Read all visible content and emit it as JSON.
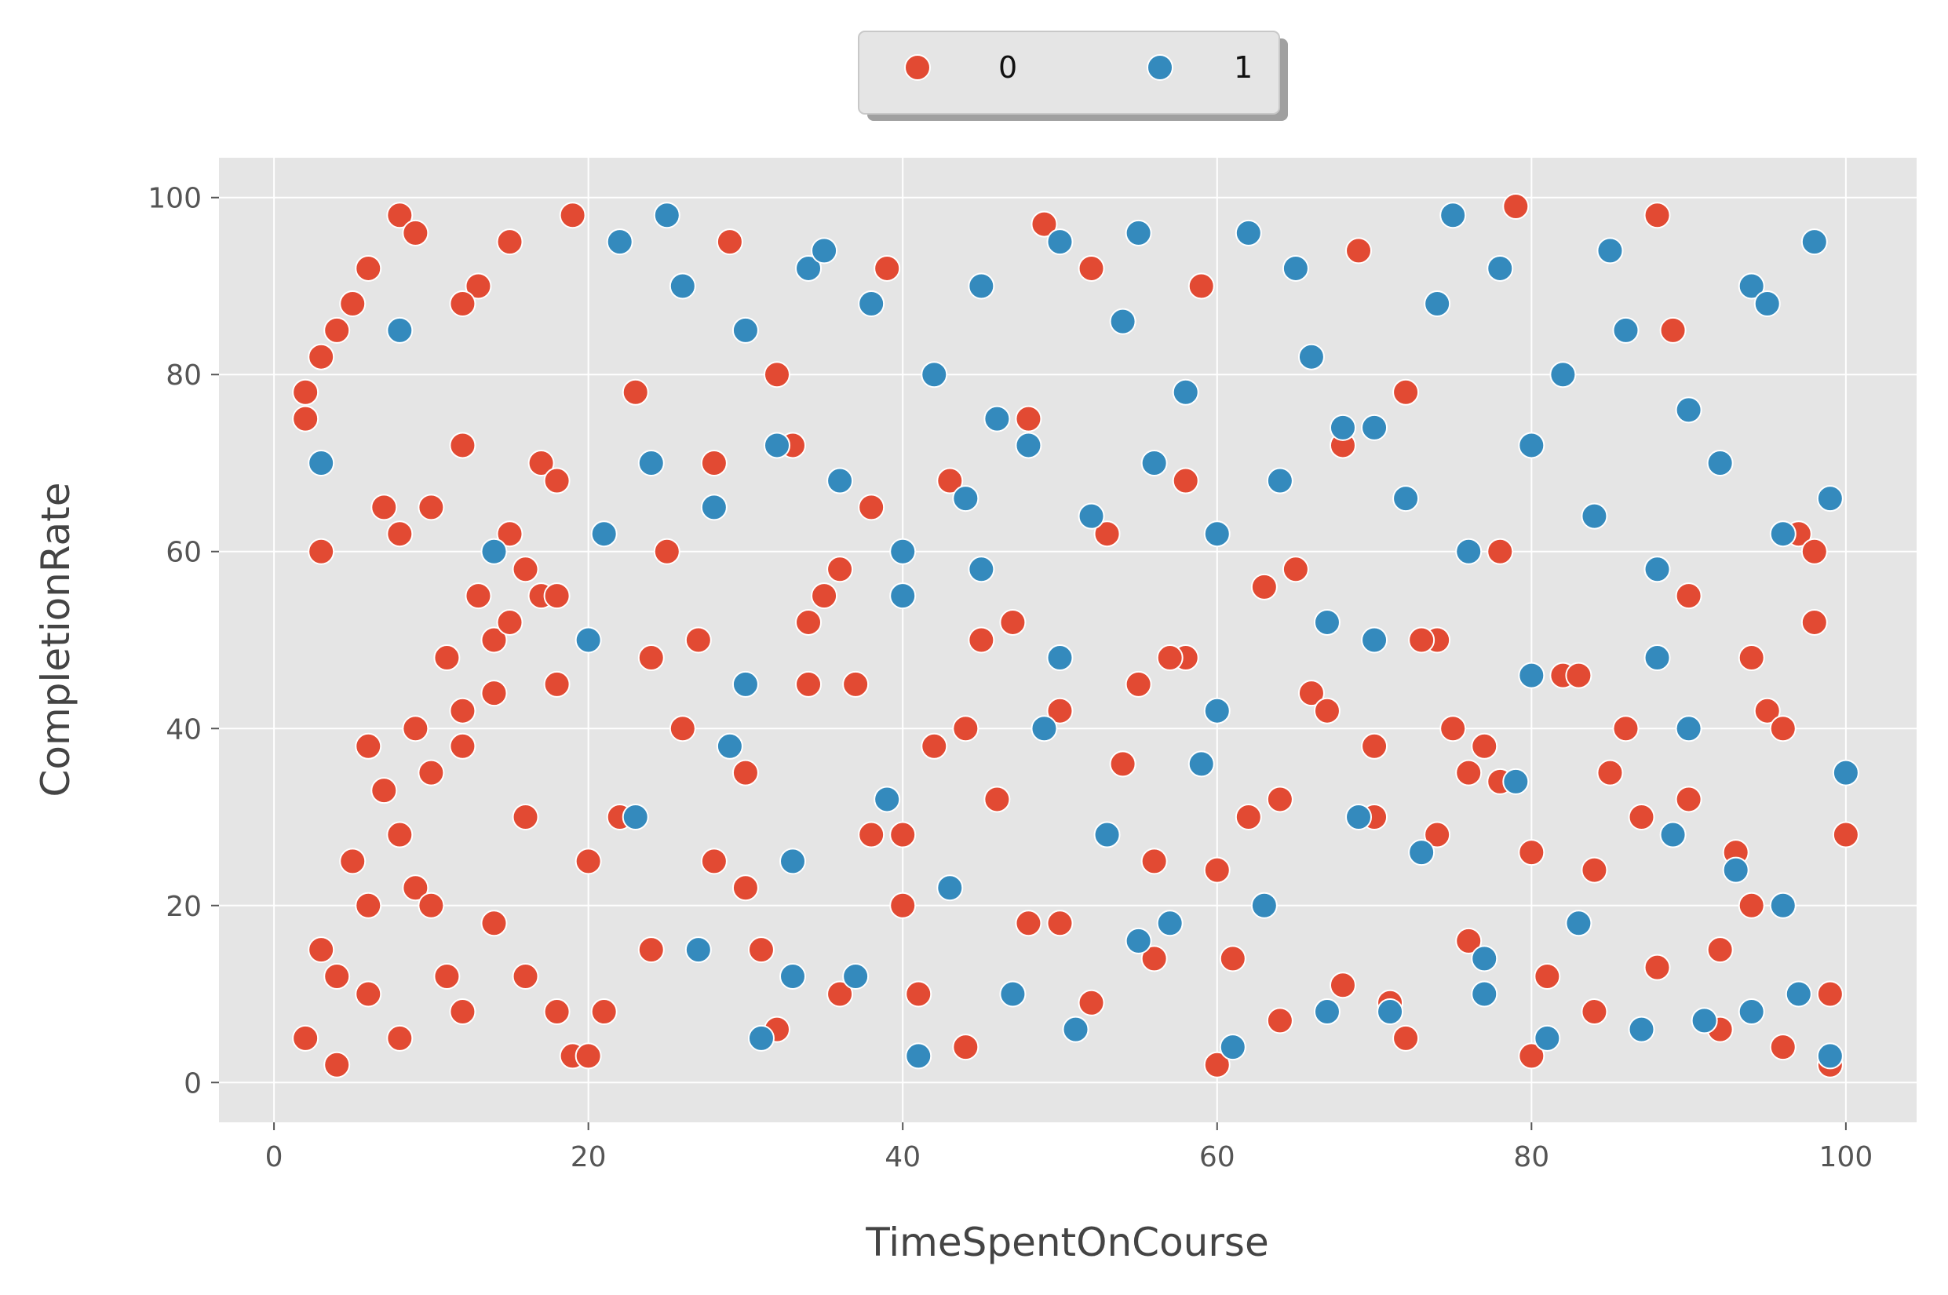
{
  "chart_data": {
    "type": "scatter",
    "title": "",
    "xlabel": "TimeSpentOnCourse",
    "ylabel": "CompletionRate",
    "xlim": [
      -3.5,
      104.5
    ],
    "ylim": [
      -4.5,
      104.5
    ],
    "x_ticks": [
      0,
      20,
      40,
      60,
      80,
      100
    ],
    "y_ticks": [
      0,
      20,
      40,
      60,
      80,
      100
    ],
    "grid": true,
    "legend": {
      "placement": "top-center",
      "columns": 2
    },
    "colors": {
      "0": "#e24a33",
      "1": "#348abd"
    },
    "series": [
      {
        "name": "0",
        "color": "#e24a33",
        "x": [
          2,
          4,
          6,
          8,
          10,
          12,
          14,
          16,
          18,
          3,
          5,
          7,
          9,
          11,
          13,
          15,
          17,
          19,
          2,
          4,
          6,
          8,
          10,
          12,
          14,
          16,
          18,
          3,
          6,
          9,
          12,
          15,
          18,
          4,
          8,
          12,
          16,
          20,
          24,
          28,
          32,
          36,
          40,
          44,
          48,
          52,
          56,
          60,
          64,
          68,
          72,
          76,
          80,
          84,
          88,
          92,
          96,
          99,
          22,
          26,
          30,
          34,
          38,
          42,
          46,
          50,
          54,
          58,
          62,
          66,
          70,
          74,
          78,
          82,
          86,
          90,
          94,
          98,
          25,
          35,
          45,
          55,
          65,
          75,
          85,
          95,
          5,
          15,
          28,
          38,
          48,
          58,
          68,
          78,
          88,
          97,
          10,
          20,
          30,
          40,
          50,
          60,
          70,
          80,
          90,
          100,
          7,
          17,
          27,
          37,
          47,
          57,
          67,
          77,
          87,
          93,
          3,
          13,
          23,
          33,
          43,
          53,
          63,
          73,
          83,
          96,
          11,
          21,
          31,
          41,
          51,
          61,
          71,
          81,
          91,
          99,
          6,
          14,
          24,
          34,
          44,
          54,
          64,
          74,
          84,
          94,
          9,
          19,
          29,
          39,
          49,
          59,
          69,
          79,
          89,
          98,
          2,
          8,
          18,
          36,
          56,
          76,
          92,
          12,
          32,
          52,
          72,
          88
        ],
        "y": [
          5,
          12,
          20,
          28,
          35,
          42,
          50,
          58,
          8,
          15,
          25,
          33,
          40,
          48,
          55,
          62,
          70,
          3,
          78,
          85,
          92,
          98,
          65,
          72,
          18,
          30,
          45,
          60,
          10,
          22,
          38,
          52,
          68,
          2,
          5,
          8,
          12,
          3,
          15,
          25,
          6,
          10,
          20,
          4,
          18,
          9,
          14,
          2,
          7,
          11,
          5,
          16,
          3,
          8,
          13,
          6,
          4,
          2,
          30,
          40,
          35,
          45,
          28,
          38,
          32,
          42,
          36,
          48,
          30,
          44,
          38,
          50,
          34,
          46,
          40,
          55,
          48,
          52,
          60,
          55,
          50,
          45,
          58,
          40,
          35,
          42,
          88,
          95,
          70,
          65,
          75,
          68,
          72,
          60,
          58,
          62,
          20,
          25,
          22,
          28,
          18,
          24,
          30,
          26,
          32,
          28,
          65,
          55,
          50,
          45,
          52,
          48,
          42,
          38,
          30,
          26,
          82,
          90,
          78,
          72,
          68,
          62,
          56,
          50,
          46,
          40,
          12,
          8,
          15,
          10,
          6,
          14,
          9,
          12,
          7,
          10,
          38,
          44,
          48,
          52,
          40,
          36,
          32,
          28,
          24,
          20,
          96,
          98,
          95,
          92,
          97,
          90,
          94,
          99,
          85,
          60,
          75,
          62,
          55,
          58,
          25,
          35,
          15,
          88,
          80,
          92,
          78,
          98
        ]
      },
      {
        "name": "1",
        "color": "#348abd",
        "x": [
          22,
          26,
          30,
          34,
          38,
          42,
          46,
          50,
          54,
          58,
          62,
          66,
          70,
          74,
          78,
          82,
          86,
          90,
          94,
          98,
          24,
          28,
          32,
          36,
          40,
          44,
          48,
          52,
          56,
          60,
          64,
          68,
          72,
          76,
          80,
          84,
          88,
          92,
          96,
          99,
          25,
          35,
          45,
          55,
          65,
          75,
          85,
          95,
          20,
          30,
          40,
          50,
          60,
          70,
          80,
          90,
          100,
          27,
          37,
          47,
          57,
          67,
          77,
          87,
          97,
          23,
          33,
          43,
          53,
          63,
          73,
          83,
          93,
          31,
          41,
          51,
          61,
          71,
          81,
          91,
          99,
          3,
          8,
          14,
          29,
          39,
          49,
          59,
          69,
          79,
          89,
          96,
          21,
          45,
          67,
          88,
          33,
          55,
          77,
          94
        ],
        "y": [
          95,
          90,
          85,
          92,
          88,
          80,
          75,
          95,
          86,
          78,
          96,
          82,
          74,
          88,
          92,
          80,
          85,
          76,
          90,
          95,
          70,
          65,
          72,
          68,
          60,
          66,
          72,
          64,
          70,
          62,
          68,
          74,
          66,
          60,
          72,
          64,
          58,
          70,
          62,
          66,
          98,
          94,
          90,
          96,
          92,
          98,
          94,
          88,
          50,
          45,
          55,
          48,
          42,
          50,
          46,
          40,
          35,
          15,
          12,
          10,
          18,
          8,
          14,
          6,
          10,
          30,
          25,
          22,
          28,
          20,
          26,
          18,
          24,
          5,
          3,
          6,
          4,
          8,
          5,
          7,
          3,
          70,
          85,
          60,
          38,
          32,
          40,
          36,
          30,
          34,
          28,
          20,
          62,
          58,
          52,
          48,
          12,
          16,
          10,
          8
        ]
      }
    ]
  }
}
